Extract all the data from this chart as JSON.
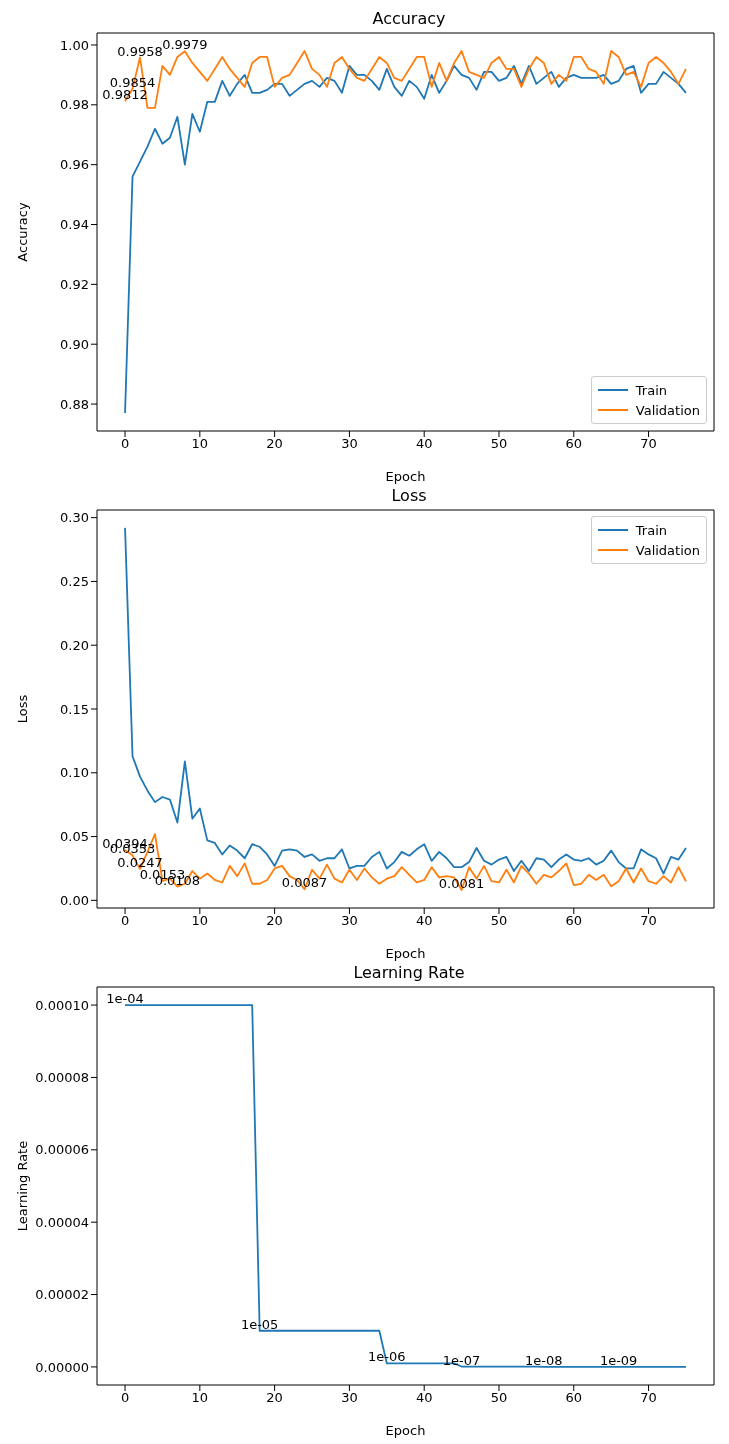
{
  "chart_data": [
    {
      "type": "line",
      "title": "Accuracy",
      "xlabel": "Epoch",
      "ylabel": "Accuracy",
      "legend": "bottom right",
      "x": [
        0,
        1,
        2,
        3,
        4,
        5,
        6,
        7,
        8,
        9,
        10,
        11,
        12,
        13,
        14,
        15,
        16,
        17,
        18,
        19,
        20,
        21,
        22,
        23,
        24,
        25,
        26,
        27,
        28,
        29,
        30,
        31,
        32,
        33,
        34,
        35,
        36,
        37,
        38,
        39,
        40,
        41,
        42,
        43,
        44,
        45,
        46,
        47,
        48,
        49,
        50,
        51,
        52,
        53,
        54,
        55,
        56,
        57,
        58,
        59,
        60,
        61,
        62,
        63,
        64,
        65,
        66,
        67,
        68,
        69,
        70,
        71,
        72,
        73,
        74,
        75
      ],
      "series": [
        {
          "name": "Train",
          "color": "#1f77b4",
          "values": [
            0.877,
            0.956,
            0.961,
            0.966,
            0.972,
            0.967,
            0.969,
            0.976,
            0.96,
            0.977,
            0.971,
            0.981,
            0.981,
            0.988,
            0.983,
            0.987,
            0.99,
            0.984,
            0.984,
            0.985,
            0.987,
            0.987,
            0.983,
            0.985,
            0.987,
            0.988,
            0.986,
            0.989,
            0.988,
            0.984,
            0.993,
            0.99,
            0.99,
            0.988,
            0.985,
            0.992,
            0.986,
            0.983,
            0.988,
            0.986,
            0.982,
            0.99,
            0.984,
            0.988,
            0.993,
            0.99,
            0.989,
            0.985,
            0.991,
            0.991,
            0.988,
            0.989,
            0.993,
            0.987,
            0.993,
            0.987,
            0.989,
            0.991,
            0.986,
            0.989,
            0.99,
            0.989,
            0.989,
            0.989,
            0.99,
            0.987,
            0.988,
            0.992,
            0.993,
            0.984,
            0.987,
            0.987,
            0.991,
            0.989,
            0.987,
            0.984
          ]
        },
        {
          "name": "Validation",
          "color": "#ff7f0e",
          "values": [
            0.9812,
            0.9854,
            0.9958,
            0.979,
            0.979,
            0.993,
            0.99,
            0.996,
            0.9979,
            0.994,
            0.991,
            0.988,
            0.992,
            0.996,
            0.992,
            0.989,
            0.986,
            0.994,
            0.996,
            0.996,
            0.986,
            0.989,
            0.99,
            0.994,
            0.998,
            0.992,
            0.99,
            0.986,
            0.994,
            0.996,
            0.992,
            0.989,
            0.988,
            0.992,
            0.996,
            0.994,
            0.989,
            0.988,
            0.992,
            0.996,
            0.996,
            0.986,
            0.994,
            0.988,
            0.994,
            0.998,
            0.991,
            0.99,
            0.989,
            0.994,
            0.996,
            0.992,
            0.992,
            0.986,
            0.992,
            0.996,
            0.994,
            0.987,
            0.99,
            0.988,
            0.996,
            0.996,
            0.992,
            0.991,
            0.987,
            0.998,
            0.996,
            0.99,
            0.991,
            0.986,
            0.994,
            0.996,
            0.994,
            0.991,
            0.987,
            0.992
          ]
        }
      ],
      "xlim": [
        -3.75,
        78.75
      ],
      "xticks": [
        0,
        10,
        20,
        30,
        40,
        50,
        60,
        70
      ],
      "ylim": [
        0.871,
        1.004
      ],
      "yticks": [
        0.88,
        {
          "value": 0.9,
          "label": "0.90"
        },
        0.92,
        0.94,
        0.96,
        0.98,
        {
          "value": 1,
          "label": "1.00"
        }
      ],
      "annotations": [
        {
          "text": "0.9812",
          "x": 0,
          "y": 0.9812
        },
        {
          "text": "0.9854",
          "x": 1,
          "y": 0.9854
        },
        {
          "text": "0.9958",
          "x": 2,
          "y": 0.9958
        },
        {
          "text": "0.9979",
          "x": 8,
          "y": 0.9979
        }
      ]
    },
    {
      "type": "line",
      "title": "Loss",
      "xlabel": "Epoch",
      "ylabel": "Loss",
      "legend": "top right",
      "x": [
        0,
        1,
        2,
        3,
        4,
        5,
        6,
        7,
        8,
        9,
        10,
        11,
        12,
        13,
        14,
        15,
        16,
        17,
        18,
        19,
        20,
        21,
        22,
        23,
        24,
        25,
        26,
        27,
        28,
        29,
        30,
        31,
        32,
        33,
        34,
        35,
        36,
        37,
        38,
        39,
        40,
        41,
        42,
        43,
        44,
        45,
        46,
        47,
        48,
        49,
        50,
        51,
        52,
        53,
        54,
        55,
        56,
        57,
        58,
        59,
        60,
        61,
        62,
        63,
        64,
        65,
        66,
        67,
        68,
        69,
        70,
        71,
        72,
        73,
        74,
        75
      ],
      "series": [
        {
          "name": "Train",
          "color": "#1f77b4",
          "values": [
            0.292,
            0.113,
            0.097,
            0.086,
            0.077,
            0.081,
            0.079,
            0.061,
            0.109,
            0.064,
            0.072,
            0.047,
            0.045,
            0.036,
            0.043,
            0.039,
            0.033,
            0.044,
            0.042,
            0.036,
            0.027,
            0.039,
            0.04,
            0.039,
            0.034,
            0.036,
            0.031,
            0.033,
            0.033,
            0.04,
            0.025,
            0.027,
            0.027,
            0.034,
            0.038,
            0.025,
            0.03,
            0.038,
            0.035,
            0.04,
            0.044,
            0.031,
            0.038,
            0.033,
            0.026,
            0.026,
            0.03,
            0.041,
            0.031,
            0.028,
            0.032,
            0.034,
            0.023,
            0.031,
            0.023,
            0.033,
            0.032,
            0.026,
            0.032,
            0.036,
            0.032,
            0.031,
            0.033,
            0.028,
            0.031,
            0.039,
            0.03,
            0.025,
            0.025,
            0.04,
            0.036,
            0.033,
            0.021,
            0.034,
            0.032,
            0.041
          ]
        },
        {
          "name": "Validation",
          "color": "#ff7f0e",
          "values": [
            0.0394,
            0.0353,
            0.0247,
            0.038,
            0.052,
            0.0153,
            0.017,
            0.0108,
            0.013,
            0.023,
            0.017,
            0.021,
            0.016,
            0.014,
            0.027,
            0.019,
            0.029,
            0.013,
            0.013,
            0.016,
            0.025,
            0.027,
            0.019,
            0.016,
            0.0087,
            0.024,
            0.017,
            0.028,
            0.017,
            0.014,
            0.024,
            0.016,
            0.025,
            0.018,
            0.013,
            0.017,
            0.019,
            0.026,
            0.02,
            0.014,
            0.016,
            0.026,
            0.018,
            0.019,
            0.018,
            0.0081,
            0.026,
            0.017,
            0.027,
            0.015,
            0.014,
            0.024,
            0.014,
            0.027,
            0.021,
            0.013,
            0.02,
            0.018,
            0.023,
            0.029,
            0.012,
            0.013,
            0.02,
            0.016,
            0.02,
            0.011,
            0.015,
            0.025,
            0.014,
            0.025,
            0.015,
            0.013,
            0.019,
            0.014,
            0.026,
            0.015
          ]
        }
      ],
      "xlim": [
        -3.75,
        78.75
      ],
      "xticks": [
        0,
        10,
        20,
        30,
        40,
        50,
        60,
        70
      ],
      "ylim": [
        -0.006,
        0.306
      ],
      "yticks": [
        {
          "value": 0,
          "label": "0.00"
        },
        {
          "value": 0.05,
          "label": "0.05"
        },
        {
          "value": 0.1,
          "label": "0.10"
        },
        {
          "value": 0.15,
          "label": "0.15"
        },
        {
          "value": 0.2,
          "label": "0.20"
        },
        {
          "value": 0.25,
          "label": "0.25"
        },
        {
          "value": 0.3,
          "label": "0.30"
        }
      ],
      "annotations": [
        {
          "text": "0.0394",
          "x": 0,
          "y": 0.0394
        },
        {
          "text": "0.0353",
          "x": 1,
          "y": 0.0353
        },
        {
          "text": "0.0247",
          "x": 2,
          "y": 0.0247
        },
        {
          "text": "0.0153",
          "x": 5,
          "y": 0.0153
        },
        {
          "text": "0.0108",
          "x": 7,
          "y": 0.0108
        },
        {
          "text": "0.0087",
          "x": 24,
          "y": 0.0087
        },
        {
          "text": "0.0081",
          "x": 45,
          "y": 0.0081
        }
      ]
    },
    {
      "type": "line",
      "title": "Learning Rate",
      "xlabel": "Epoch",
      "ylabel": "Learning Rate",
      "x": [
        0,
        1,
        2,
        3,
        4,
        5,
        6,
        7,
        8,
        9,
        10,
        11,
        12,
        13,
        14,
        15,
        16,
        17,
        18,
        19,
        20,
        21,
        22,
        23,
        24,
        25,
        26,
        27,
        28,
        29,
        30,
        31,
        32,
        33,
        34,
        35,
        36,
        37,
        38,
        39,
        40,
        41,
        42,
        43,
        44,
        45,
        46,
        47,
        48,
        49,
        50,
        51,
        52,
        53,
        54,
        55,
        56,
        57,
        58,
        59,
        60,
        61,
        62,
        63,
        64,
        65,
        66,
        67,
        68,
        69,
        70,
        71,
        72,
        73,
        74,
        75
      ],
      "series": [
        {
          "color": "#1f77b4",
          "values": [
            0.0001,
            0.0001,
            0.0001,
            0.0001,
            0.0001,
            0.0001,
            0.0001,
            0.0001,
            0.0001,
            0.0001,
            0.0001,
            0.0001,
            0.0001,
            0.0001,
            0.0001,
            0.0001,
            0.0001,
            0.0001,
            1e-05,
            1e-05,
            1e-05,
            1e-05,
            1e-05,
            1e-05,
            1e-05,
            1e-05,
            1e-05,
            1e-05,
            1e-05,
            1e-05,
            1e-05,
            1e-05,
            1e-05,
            1e-05,
            1e-05,
            1e-06,
            1e-06,
            1e-06,
            1e-06,
            1e-06,
            1e-06,
            1e-06,
            1e-06,
            1e-06,
            1e-06,
            1e-07,
            1e-07,
            1e-07,
            1e-07,
            1e-07,
            1e-07,
            1e-07,
            1e-07,
            1e-07,
            1e-07,
            1e-07,
            1e-08,
            1e-08,
            1e-08,
            1e-08,
            1e-08,
            1e-08,
            1e-08,
            1e-08,
            1e-08,
            1e-08,
            1e-09,
            1e-09,
            1e-09,
            1e-09,
            1e-09,
            1e-09,
            1e-09,
            1e-09,
            1e-09,
            1e-09
          ]
        }
      ],
      "xlim": [
        -3.75,
        78.75
      ],
      "xticks": [
        0,
        10,
        20,
        30,
        40,
        50,
        60,
        70
      ],
      "ylim": [
        -5e-06,
        0.000105
      ],
      "yticks": [
        {
          "value": 0,
          "label": "0.00000"
        },
        {
          "value": 2e-05,
          "label": "0.00002"
        },
        {
          "value": 4e-05,
          "label": "0.00004"
        },
        {
          "value": 6e-05,
          "label": "0.00006"
        },
        {
          "value": 8e-05,
          "label": "0.00008"
        },
        {
          "value": 0.0001,
          "label": "0.00010"
        }
      ],
      "annotations": [
        {
          "text": "1e-04",
          "x": 0,
          "y": 0.0001
        },
        {
          "text": "1e-05",
          "x": 18,
          "y": 1e-05
        },
        {
          "text": "1e-06",
          "x": 35,
          "y": 1e-06
        },
        {
          "text": "1e-07",
          "x": 45,
          "y": 1e-07
        },
        {
          "text": "1e-08",
          "x": 56,
          "y": 1e-08
        },
        {
          "text": "1e-09",
          "x": 66,
          "y": 1e-09
        }
      ]
    }
  ]
}
